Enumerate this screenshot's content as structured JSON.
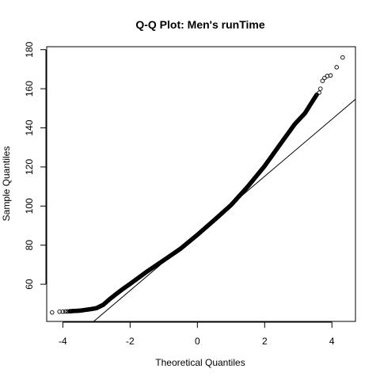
{
  "chart_data": {
    "type": "scatter",
    "title": "Q-Q Plot: Men's runTime",
    "xlabel": "Theoretical Quantiles",
    "ylabel": "Sample Quantiles",
    "xlim": [
      -4.48,
      4.7
    ],
    "ylim": [
      41.0,
      181.5
    ],
    "xticks": [
      -4,
      -2,
      0,
      2,
      4
    ],
    "yticks": [
      60,
      80,
      100,
      120,
      140,
      160,
      180
    ],
    "reference_line": {
      "intercept": 86.0,
      "slope": 14.6
    },
    "series": [
      {
        "marker": "open-circle",
        "curve_points": [
          [
            -3.8,
            46.2
          ],
          [
            -3.5,
            46.5
          ],
          [
            -3.2,
            47.2
          ],
          [
            -3.0,
            47.8
          ],
          [
            -2.8,
            49.5
          ],
          [
            -2.6,
            52.5
          ],
          [
            -2.4,
            55.2
          ],
          [
            -2.2,
            57.8
          ],
          [
            -2.0,
            60.2
          ],
          [
            -1.5,
            66.5
          ],
          [
            -1.0,
            72.3
          ],
          [
            -0.5,
            78.2
          ],
          [
            0.0,
            85.3
          ],
          [
            0.5,
            92.8
          ],
          [
            1.0,
            100.5
          ],
          [
            1.5,
            110.0
          ],
          [
            2.0,
            120.5
          ],
          [
            2.5,
            132.5
          ],
          [
            2.9,
            142.0
          ],
          [
            3.2,
            147.5
          ],
          [
            3.4,
            153.0
          ],
          [
            3.55,
            157.0
          ]
        ],
        "tail_points": [
          [
            -4.32,
            45.6
          ],
          [
            -4.1,
            46.0
          ],
          [
            -4.0,
            46.0
          ],
          [
            -3.92,
            46.1
          ],
          [
            -3.86,
            46.1
          ],
          [
            3.62,
            158.0
          ],
          [
            3.66,
            160.0
          ],
          [
            3.72,
            164.0
          ],
          [
            3.78,
            165.5
          ],
          [
            3.86,
            166.5
          ],
          [
            3.96,
            166.8
          ],
          [
            4.14,
            171.0
          ],
          [
            4.32,
            176.0
          ]
        ]
      }
    ]
  }
}
